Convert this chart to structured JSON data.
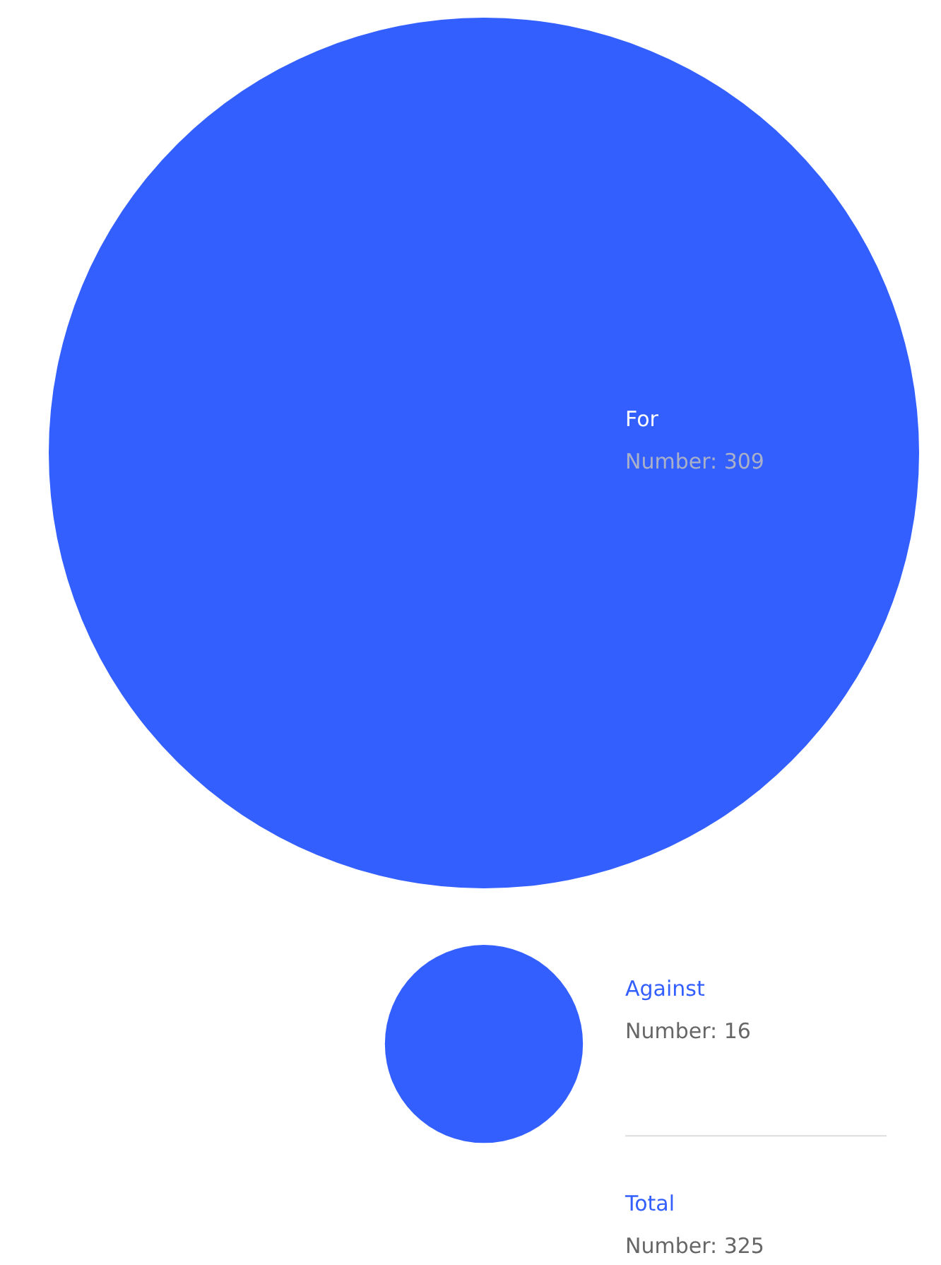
{
  "chart_data": {
    "type": "other",
    "categories": [
      "For",
      "Against"
    ],
    "values": [
      309,
      16
    ],
    "value_labels": [
      "Number: 309",
      "Number: 16"
    ],
    "color": "#335fff",
    "annotations": [
      "Total",
      "Number: 325"
    ]
  }
}
